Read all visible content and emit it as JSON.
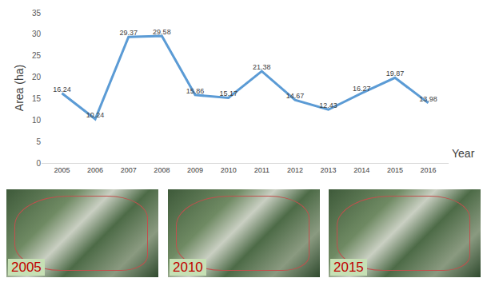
{
  "chart_data": {
    "type": "line",
    "y_title": "Area (ha)",
    "x_title": "Year",
    "categories": [
      "2005",
      "2006",
      "2007",
      "2008",
      "2009",
      "2010",
      "2011",
      "2012",
      "2013",
      "2014",
      "2015",
      "2016"
    ],
    "values": [
      16.24,
      10.24,
      29.37,
      29.58,
      15.86,
      15.17,
      21.38,
      14.67,
      12.43,
      16.27,
      19.87,
      13.98
    ],
    "color": "#5b9bd5",
    "ylim": [
      0,
      35
    ],
    "yticks": [
      0,
      5,
      10,
      15,
      20,
      25,
      30,
      35
    ],
    "grid": false,
    "data_labels": true
  },
  "panels": [
    {
      "label": "2005"
    },
    {
      "label": "2010"
    },
    {
      "label": "2015"
    }
  ]
}
